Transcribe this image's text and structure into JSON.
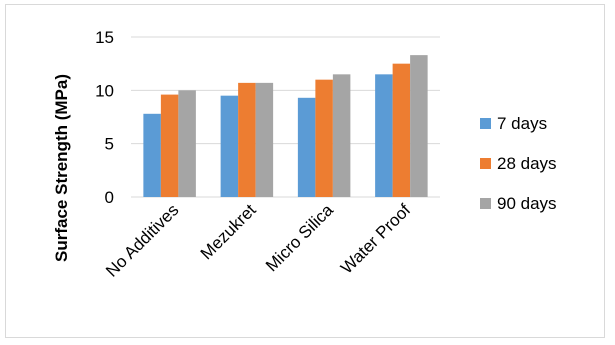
{
  "chart_data": {
    "type": "bar",
    "title": "",
    "xlabel": "",
    "ylabel": "Surface Strength (MPa)",
    "ylim": [
      0,
      15
    ],
    "yticks": [
      0,
      5,
      10,
      15
    ],
    "grid": "horizontal",
    "legend_position": "right",
    "categories": [
      "No Additives",
      "Mezukret",
      "Micro Silica",
      "Water Proof"
    ],
    "series": [
      {
        "name": "7 days",
        "color": "#5b9bd5",
        "values": [
          7.8,
          9.5,
          9.3,
          11.5
        ]
      },
      {
        "name": "28 days",
        "color": "#ed7d31",
        "values": [
          9.6,
          10.7,
          11.0,
          12.5
        ]
      },
      {
        "name": "90 days",
        "color": "#a5a5a5",
        "values": [
          10.0,
          10.7,
          11.5,
          13.3
        ]
      }
    ]
  }
}
